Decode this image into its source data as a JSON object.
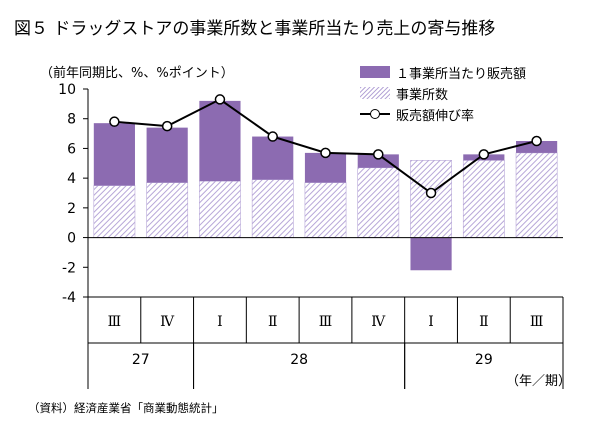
{
  "title": "図５ ドラッグストアの事業所数と事業所当たり売上の寄与推移",
  "unit_label": "（前年同期比、%、%ポイント）",
  "x_unit_label": "（年／期）",
  "source": "（資料）経済産業省「商業動態統計」",
  "colors": {
    "per_store": "#8c6bb1",
    "store_count": "#b7a7d8",
    "line": "#000000"
  },
  "chart_data": {
    "type": "bar",
    "stacked": true,
    "categories": [
      "Ⅲ",
      "Ⅳ",
      "Ⅰ",
      "Ⅱ",
      "Ⅲ",
      "Ⅳ",
      "Ⅰ",
      "Ⅱ",
      "Ⅲ"
    ],
    "year_groups": [
      {
        "label": "27",
        "start": 0,
        "end": 1
      },
      {
        "label": "28",
        "start": 2,
        "end": 5
      },
      {
        "label": "29",
        "start": 6,
        "end": 8
      }
    ],
    "series": [
      {
        "name": "１事業所当たり販売額",
        "kind": "bar",
        "values": [
          4.2,
          3.7,
          5.4,
          2.9,
          2.0,
          0.9,
          -2.2,
          0.4,
          0.8
        ]
      },
      {
        "name": "事業所数",
        "kind": "bar",
        "values": [
          3.5,
          3.7,
          3.8,
          3.9,
          3.7,
          4.7,
          5.2,
          5.2,
          5.7
        ]
      },
      {
        "name": "販売額伸び率",
        "kind": "line",
        "values": [
          7.8,
          7.5,
          9.3,
          6.8,
          5.7,
          5.6,
          3.0,
          5.6,
          6.5
        ]
      }
    ],
    "ylim": [
      -4,
      10
    ],
    "yticks": [
      -4,
      -2,
      0,
      2,
      4,
      6,
      8,
      10
    ],
    "legend_position": "top-right",
    "grid": false
  }
}
